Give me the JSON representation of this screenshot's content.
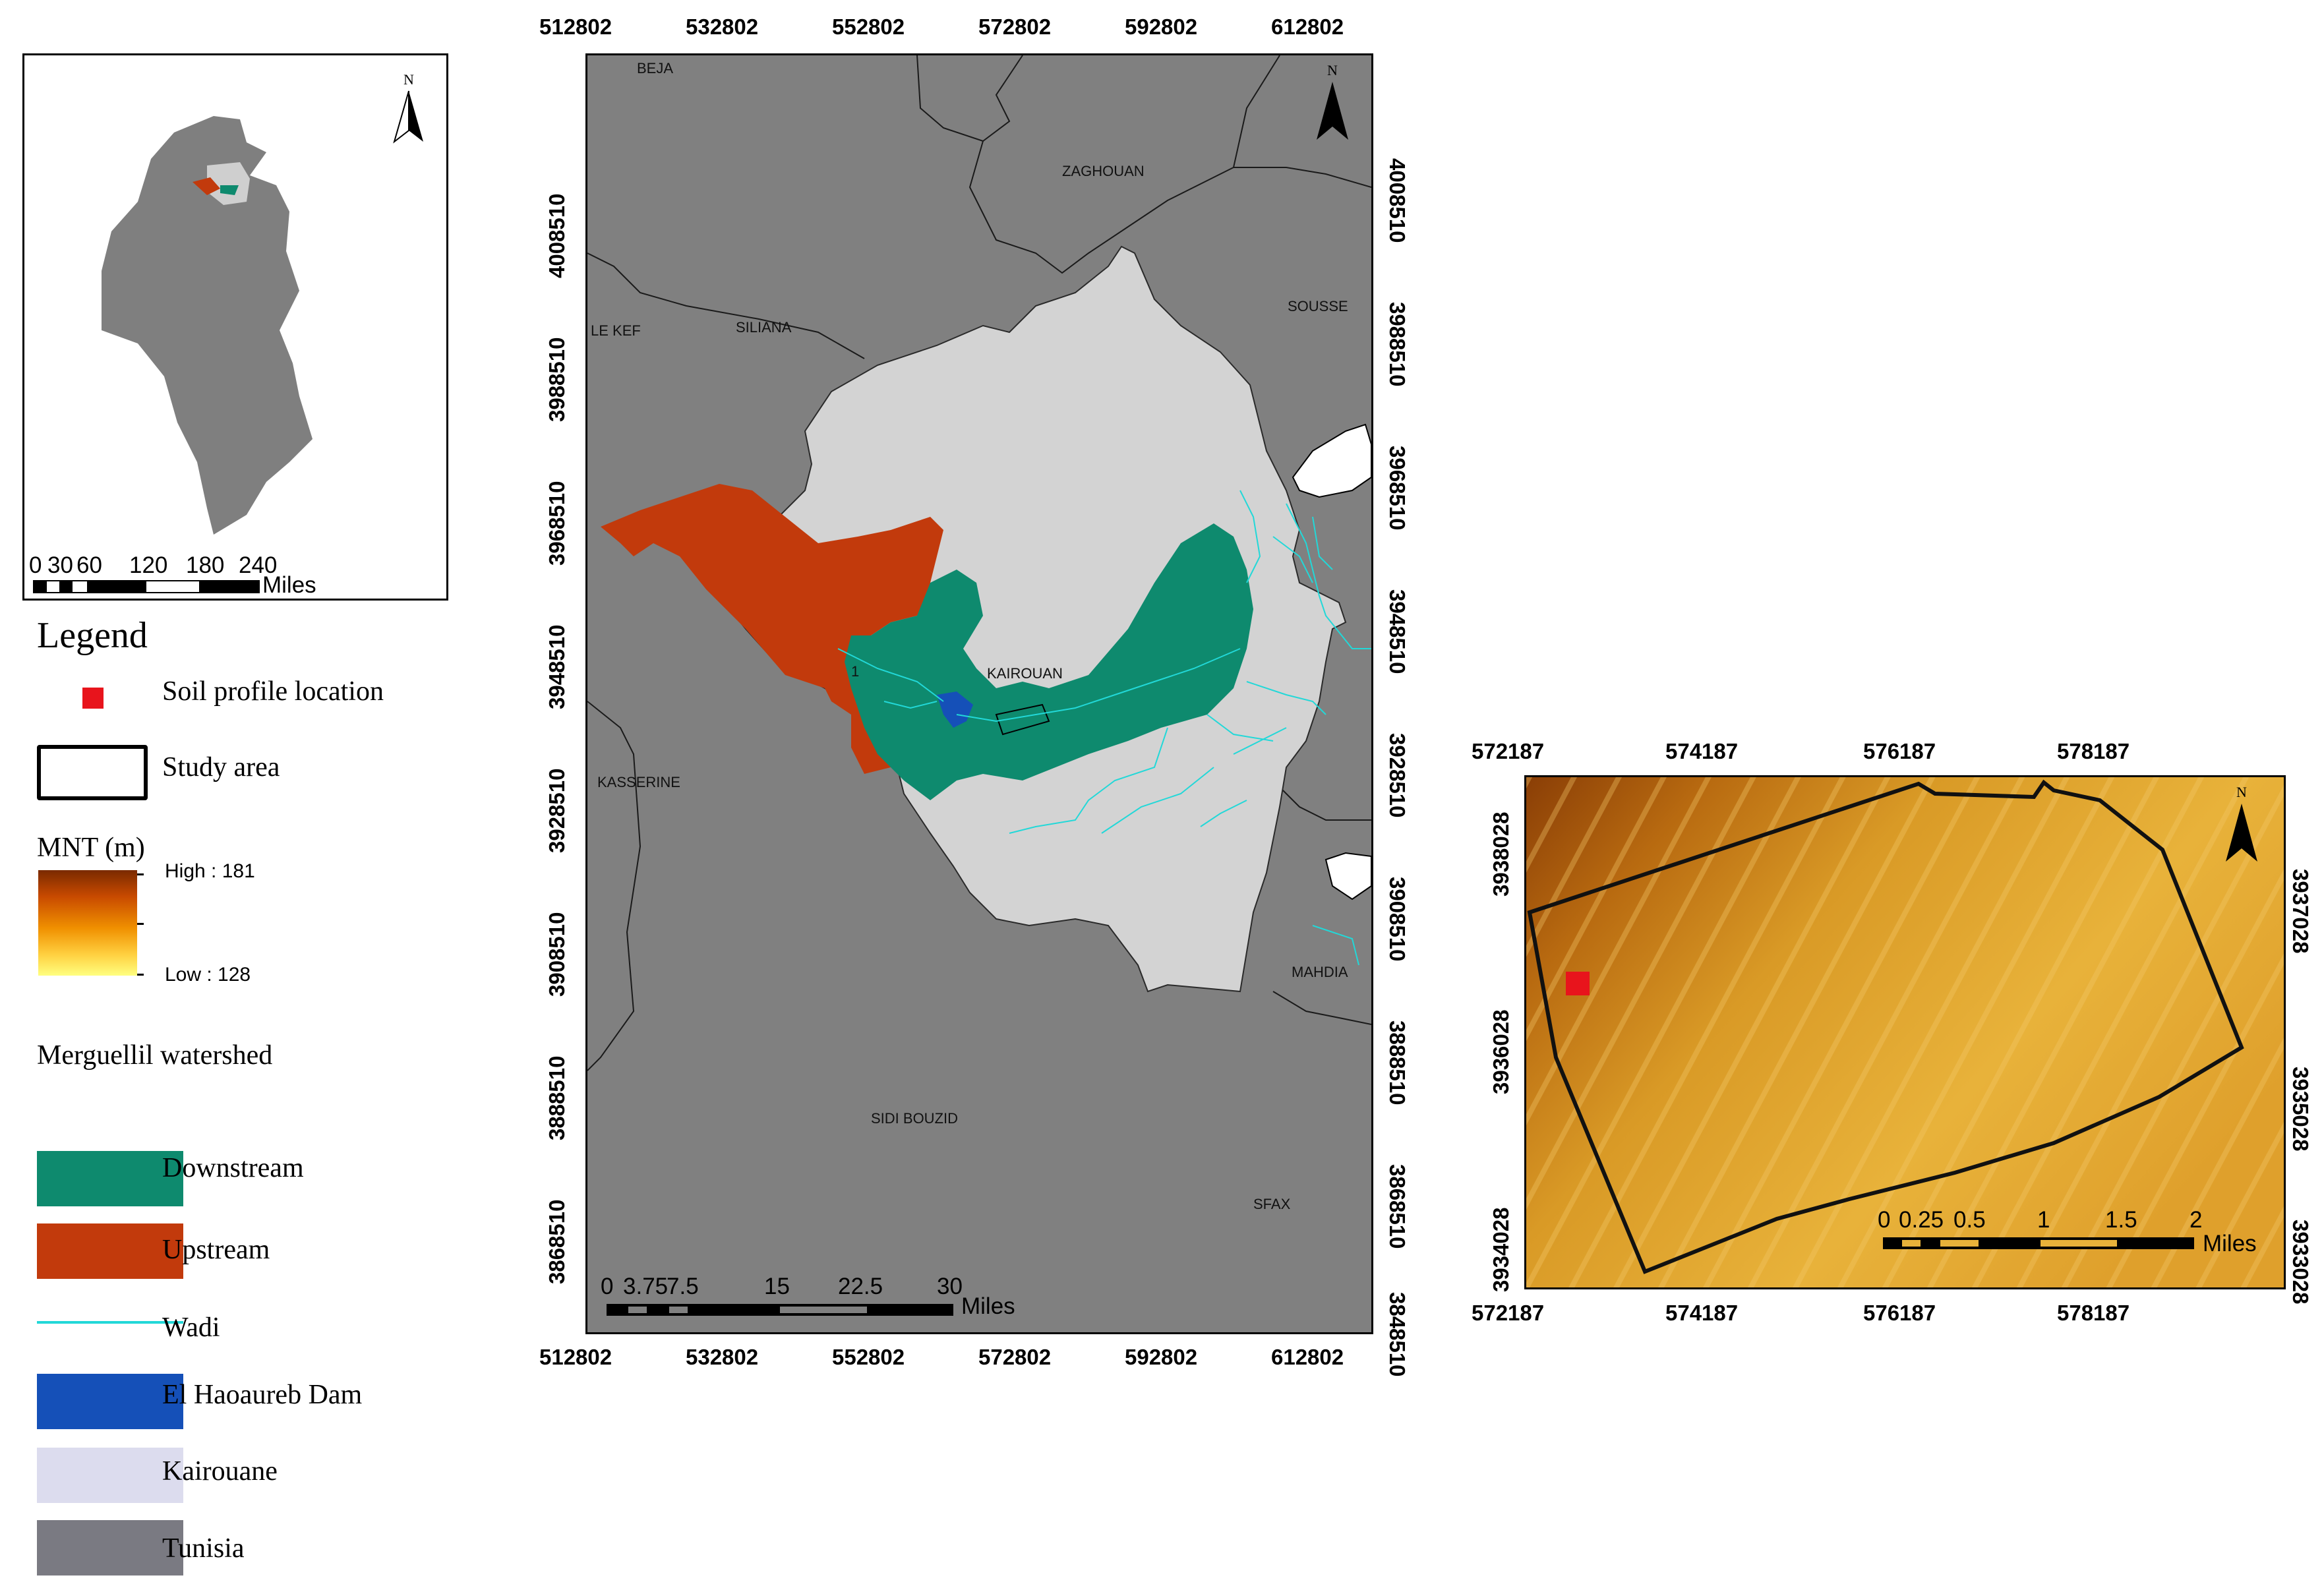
{
  "inset": {
    "north": "N",
    "scale_numbers": [
      "0",
      "30",
      "60",
      "120",
      "180",
      "240"
    ],
    "scale_unit": "Miles"
  },
  "legend": {
    "title": "Legend",
    "soil_profile": "Soil profile location",
    "study_area": "Study area",
    "mnt_title": "MNT (m)",
    "mnt_high": "High : 181",
    "mnt_low": "Low : 128",
    "watershed_title": "Merguellil watershed",
    "downstream": "Downstream",
    "upstream": "Upstream",
    "wadi": "Wadi",
    "dam": "El Haoaureb Dam",
    "kairouane": "Kairouane",
    "tunisia": "Tunisia",
    "colors": {
      "soil_profile": "#e8141c",
      "downstream": "#0e8a6e",
      "upstream": "#c23a0c",
      "wadi": "#22d8d8",
      "dam": "#1550b8",
      "kairouane": "#dcdcee",
      "tunisia": "#7a7a82"
    }
  },
  "main_map": {
    "north": "N",
    "x_ticks": [
      "512802",
      "532802",
      "552802",
      "572802",
      "592802",
      "612802"
    ],
    "y_ticks_left": [
      "4008510",
      "3988510",
      "3968510",
      "3948510",
      "3928510",
      "3908510",
      "3888510",
      "3868510"
    ],
    "y_ticks_right": [
      "4008510",
      "3988510",
      "3968510",
      "3948510",
      "3928510",
      "3908510",
      "3888510",
      "3868510",
      "3848510"
    ],
    "places": {
      "beja": "BEJA",
      "zaghouan": "ZAGHOUAN",
      "sousse": "SOUSSE",
      "le_kef": "LE KEF",
      "siliana": "SILIANA",
      "kairouan": "KAIROUAN",
      "kasserine": "KASSERINE",
      "mahdia": "MAHDIA",
      "sidi_bouzid": "SIDI BOUZID",
      "sfax": "SFAX",
      "label_1": "1"
    },
    "scale_numbers": [
      "0",
      "3.75",
      "7.5",
      "15",
      "22.5",
      "30"
    ],
    "scale_unit": "Miles",
    "colors": {
      "tunisia": "#808080",
      "kairouan": "#d3d3d3",
      "downstream": "#0e8a6e",
      "upstream": "#c23a0c",
      "wadi": "#22d8d8",
      "dam": "#1550b8"
    }
  },
  "study_map": {
    "north": "N",
    "x_ticks": [
      "572187",
      "574187",
      "576187",
      "578187"
    ],
    "y_ticks_left": [
      "3938028",
      "3936028",
      "3934028"
    ],
    "y_ticks_right": [
      "3937028",
      "3935028",
      "3933028"
    ],
    "scale_numbers": [
      "0",
      "0.25",
      "0.5",
      "1",
      "1.5",
      "2"
    ],
    "scale_unit": "Miles"
  }
}
